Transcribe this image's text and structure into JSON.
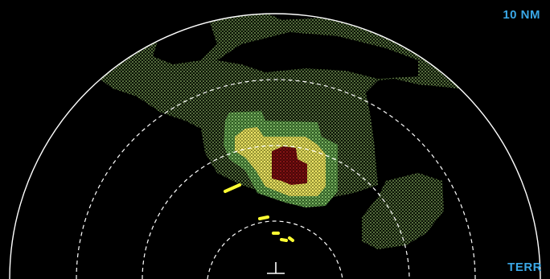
{
  "display": {
    "range_label": "10 NM",
    "mode_label": "TERR",
    "colors": {
      "background": "#000000",
      "label_cyan": "#3aa7e6",
      "range_ring": "#ffffff",
      "terrain_green_dots": "#8fb46a",
      "terrain_yellow": "#d8d35a",
      "terrain_red": "#7a1010",
      "aircraft_symbol": "#ffffff",
      "obstacle_yellow": "#ffff33"
    },
    "icons": {
      "own_aircraft": "aircraft-symbol-icon",
      "range_rings": "range-ring-icon"
    }
  }
}
